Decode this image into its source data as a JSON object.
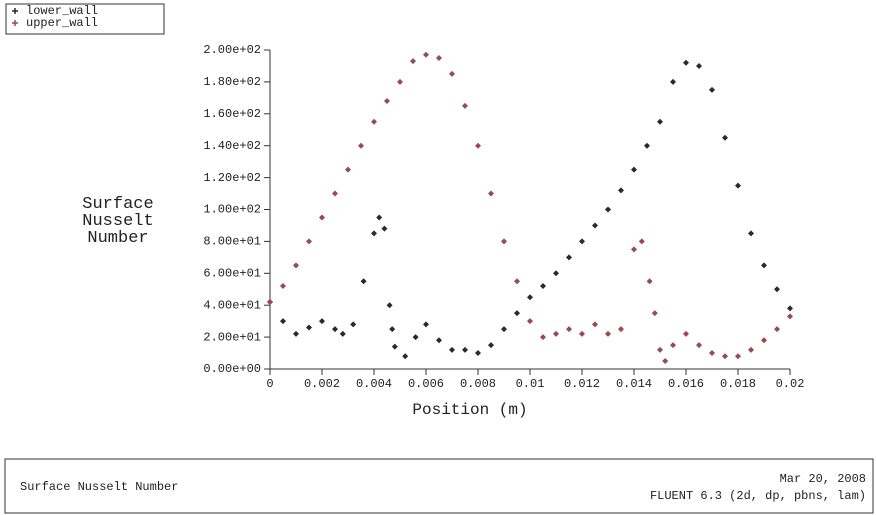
{
  "chart_data": {
    "type": "scatter",
    "xlabel": "Position (m)",
    "ylabel": "Surface Nusselt Number",
    "footer_title": "Surface Nusselt Number",
    "footer_date": "Mar 20, 2008",
    "footer_solver": "FLUENT 6.3 (2d, dp, pbns, lam)",
    "xlim": [
      0,
      0.02
    ],
    "ylim": [
      0,
      200
    ],
    "xticks": [
      0,
      0.002,
      0.004,
      0.006,
      0.008,
      0.01,
      0.012,
      0.014,
      0.016,
      0.018,
      0.02
    ],
    "yticks": [
      {
        "value": 0,
        "label": "0.00e+00"
      },
      {
        "value": 20,
        "label": "2.00e+01"
      },
      {
        "value": 40,
        "label": "4.00e+01"
      },
      {
        "value": 60,
        "label": "6.00e+01"
      },
      {
        "value": 80,
        "label": "8.00e+01"
      },
      {
        "value": 100,
        "label": "1.00e+02"
      },
      {
        "value": 120,
        "label": "1.20e+02"
      },
      {
        "value": 140,
        "label": "1.40e+02"
      },
      {
        "value": 160,
        "label": "1.60e+02"
      },
      {
        "value": 180,
        "label": "1.80e+02"
      },
      {
        "value": 200,
        "label": "2.00e+02"
      }
    ],
    "series": [
      {
        "name": "lower_wall",
        "color": "#2a2a2a",
        "x": [
          0,
          0.0005,
          0.001,
          0.0015,
          0.002,
          0.0025,
          0.0028,
          0.0032,
          0.0036,
          0.004,
          0.0042,
          0.0044,
          0.0046,
          0.0047,
          0.0048,
          0.0052,
          0.0056,
          0.006,
          0.0065,
          0.007,
          0.0075,
          0.008,
          0.0085,
          0.009,
          0.0095,
          0.01,
          0.0105,
          0.011,
          0.0115,
          0.012,
          0.0125,
          0.013,
          0.0135,
          0.014,
          0.0145,
          0.015,
          0.0155,
          0.016,
          0.0165,
          0.017,
          0.0175,
          0.018,
          0.0185,
          0.019,
          0.0195,
          0.02
        ],
        "values": [
          42,
          30,
          22,
          26,
          30,
          25,
          22,
          28,
          55,
          85,
          95,
          88,
          40,
          25,
          14,
          8,
          20,
          28,
          18,
          12,
          12,
          10,
          15,
          25,
          35,
          45,
          52,
          60,
          70,
          80,
          90,
          100,
          112,
          125,
          140,
          155,
          180,
          192,
          190,
          175,
          145,
          115,
          85,
          65,
          50,
          38
        ]
      },
      {
        "name": "upper_wall",
        "color": "#9a4a4a",
        "x": [
          0,
          0.0005,
          0.001,
          0.0015,
          0.002,
          0.0025,
          0.003,
          0.0035,
          0.004,
          0.0045,
          0.005,
          0.0055,
          0.006,
          0.0065,
          0.007,
          0.0075,
          0.008,
          0.0085,
          0.009,
          0.0095,
          0.01,
          0.0105,
          0.011,
          0.0115,
          0.012,
          0.0125,
          0.013,
          0.0135,
          0.014,
          0.0143,
          0.0146,
          0.0148,
          0.015,
          0.0152,
          0.0155,
          0.016,
          0.0165,
          0.017,
          0.0175,
          0.018,
          0.0185,
          0.019,
          0.0195,
          0.02
        ],
        "values": [
          42,
          52,
          65,
          80,
          95,
          110,
          125,
          140,
          155,
          168,
          180,
          193,
          197,
          195,
          185,
          165,
          140,
          110,
          80,
          55,
          30,
          20,
          22,
          25,
          22,
          28,
          22,
          25,
          75,
          80,
          55,
          35,
          12,
          5,
          15,
          22,
          15,
          10,
          8,
          8,
          12,
          18,
          25,
          33
        ]
      }
    ]
  }
}
